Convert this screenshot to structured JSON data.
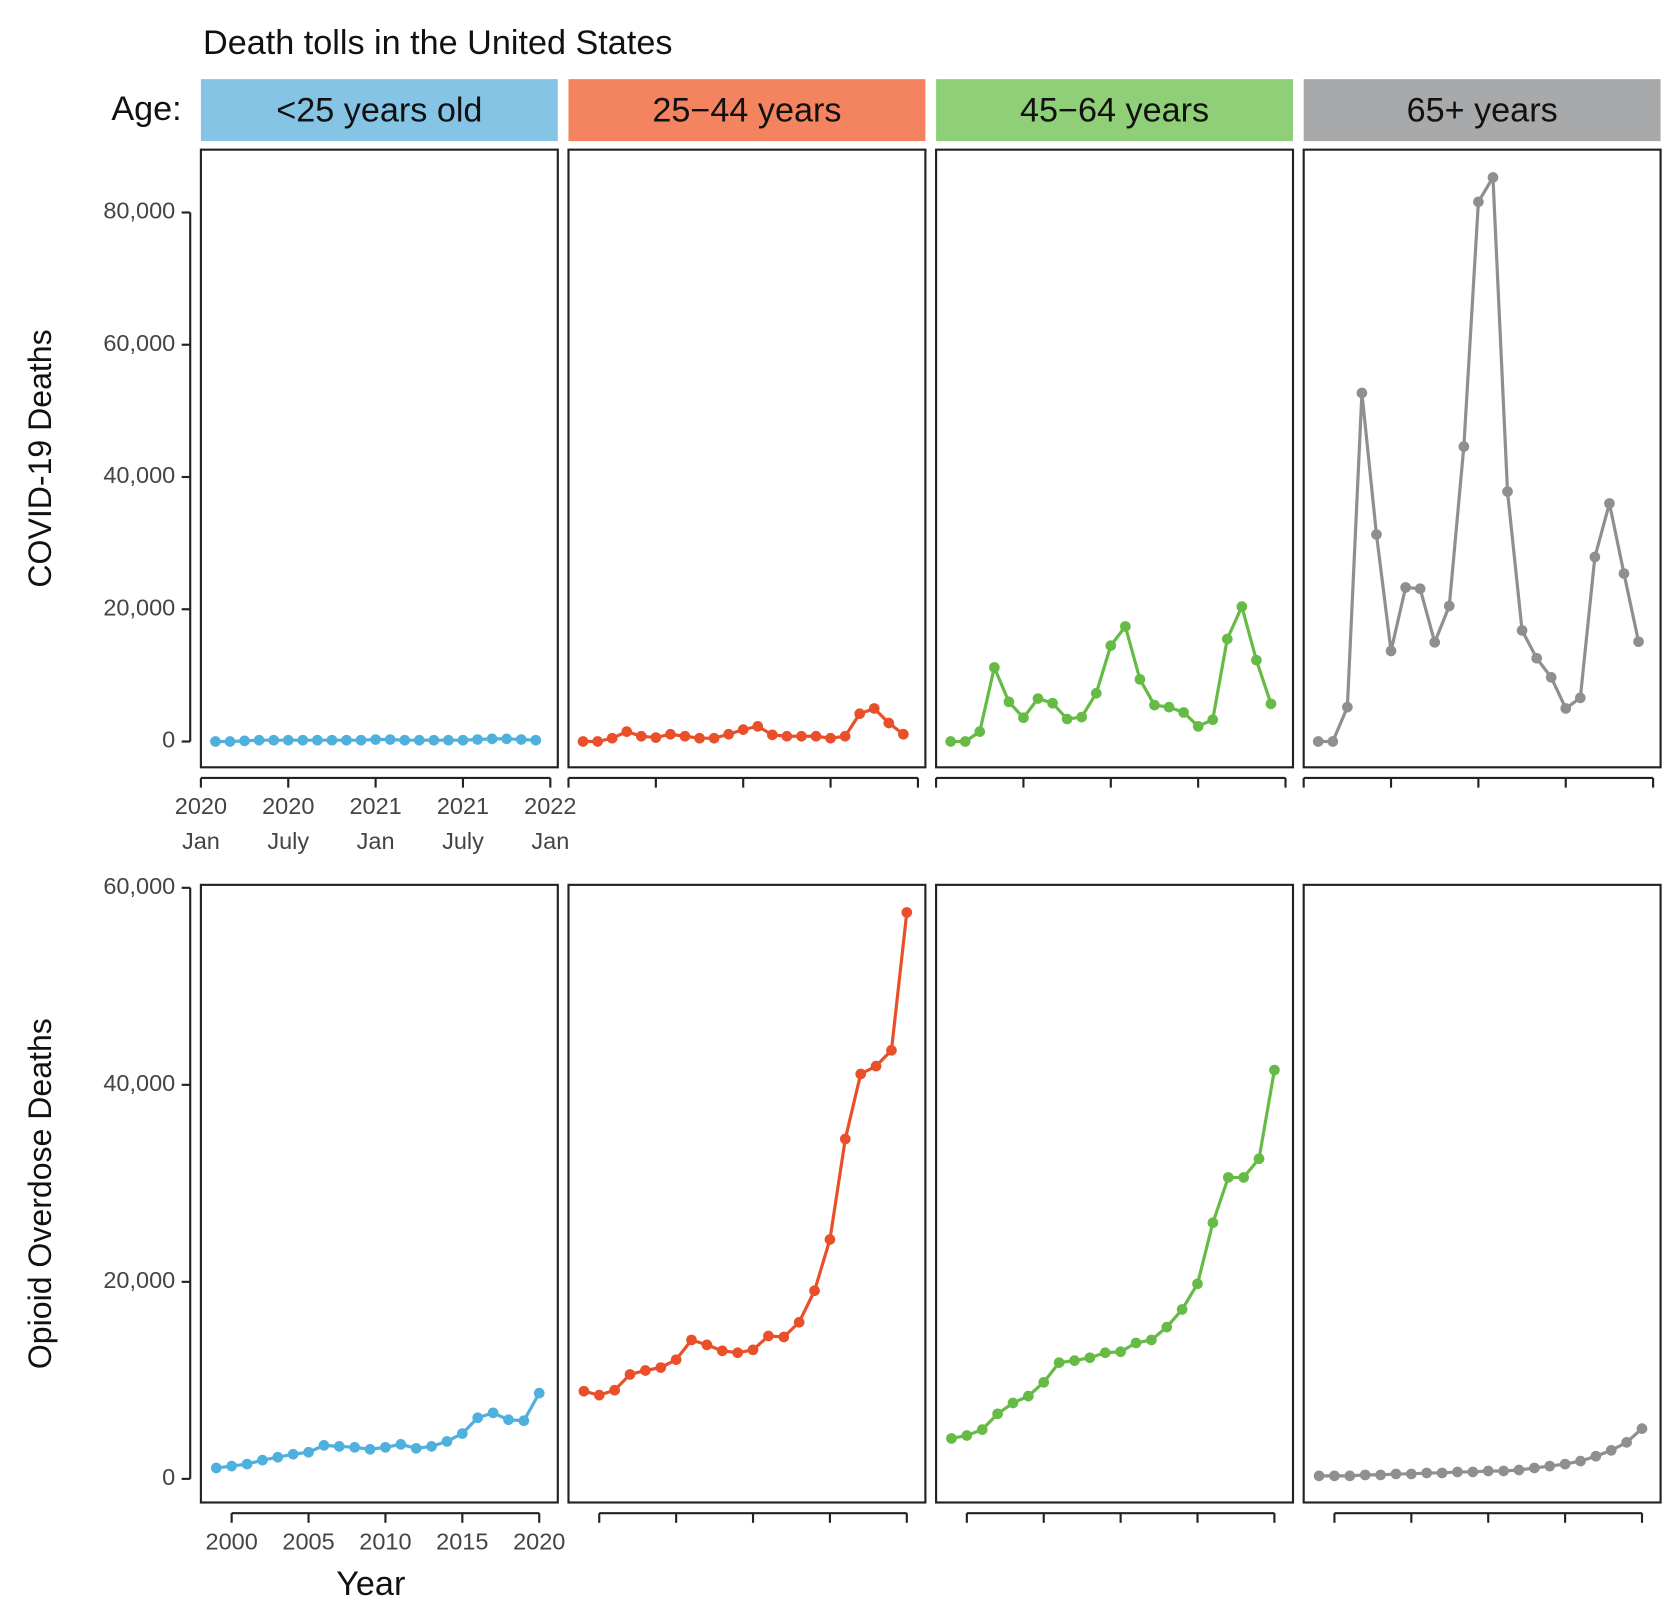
{
  "chart_data": {
    "type": "line",
    "title": "Death tolls in the United States",
    "facet_label": "Age:",
    "panels": [
      {
        "name": "<25 years old",
        "strip_color": "#85c4e4",
        "color": "#4fb0de"
      },
      {
        "name": "25−44 years",
        "strip_color": "#f4845f",
        "color": "#e9502a"
      },
      {
        "name": "45−64 years",
        "strip_color": "#8fcf78",
        "color": "#66bb46"
      },
      {
        "name": "65+ years",
        "strip_color": "#a8a9aa",
        "color": "#8e9090"
      }
    ],
    "rows": [
      {
        "ylabel": "COVID-19 Deaths",
        "x": [
          "2020-02",
          "2020-03",
          "2020-04",
          "2020-05",
          "2020-06",
          "2020-07",
          "2020-08",
          "2020-09",
          "2020-10",
          "2020-11",
          "2020-12",
          "2021-01",
          "2021-02",
          "2021-03",
          "2021-04",
          "2021-05",
          "2021-06",
          "2021-07",
          "2021-08",
          "2021-09",
          "2021-10",
          "2021-11",
          "2021-12"
        ],
        "xlim": [
          "2020-01",
          "2022-01"
        ],
        "xticks": [
          {
            "value": "2020-01",
            "label": "2020\nJan"
          },
          {
            "value": "2020-07",
            "label": "2020\nJuly"
          },
          {
            "value": "2021-01",
            "label": "2021\nJan"
          },
          {
            "value": "2021-07",
            "label": "2021\nJuly"
          },
          {
            "value": "2022-01",
            "label": "2022\nJan"
          }
        ],
        "ylim": [
          -3900,
          89500
        ],
        "yticks": [
          {
            "value": 0,
            "label": "0"
          },
          {
            "value": 20000,
            "label": "20,000"
          },
          {
            "value": 40000,
            "label": "40,000"
          },
          {
            "value": 60000,
            "label": "60,000"
          },
          {
            "value": 80000,
            "label": "80,000"
          }
        ],
        "series": [
          {
            "values": [
              0,
              0,
              100,
              200,
              200,
              200,
              200,
              200,
              200,
              200,
              200,
              300,
              300,
              200,
              200,
              200,
              200,
              200,
              300,
              400,
              400,
              300,
              200
            ]
          },
          {
            "values": [
              0,
              0,
              500,
              1500,
              800,
              600,
              1100,
              800,
              500,
              500,
              1100,
              1800,
              2300,
              1000,
              800,
              800,
              800,
              500,
              800,
              4200,
              5000,
              2800,
              1100
            ]
          },
          {
            "values": [
              0,
              0,
              1500,
              11200,
              6000,
              3600,
              6500,
              5800,
              3400,
              3700,
              7300,
              14500,
              17400,
              9400,
              5500,
              5200,
              4400,
              2300,
              3300,
              15500,
              20400,
              12300,
              5700
            ]
          },
          {
            "values": [
              0,
              0,
              5200,
              52700,
              31300,
              13700,
              23300,
              23100,
              15000,
              20500,
              44600,
              81600,
              85300,
              37800,
              16800,
              12600,
              9700,
              5000,
              6600,
              27900,
              36000,
              25400,
              15100
            ]
          }
        ]
      },
      {
        "ylabel": "Opioid Overdose Deaths",
        "xlabel": "Year",
        "x": [
          1999,
          2000,
          2001,
          2002,
          2003,
          2004,
          2005,
          2006,
          2007,
          2008,
          2009,
          2010,
          2011,
          2012,
          2013,
          2014,
          2015,
          2016,
          2017,
          2018,
          2019,
          2020
        ],
        "xlim": [
          1998,
          2021
        ],
        "xticks": [
          2000,
          2005,
          2010,
          2015,
          2020
        ],
        "ylim": [
          -2400,
          60300
        ],
        "yticks": [
          {
            "value": 0,
            "label": "0"
          },
          {
            "value": 20000,
            "label": "20,000"
          },
          {
            "value": 40000,
            "label": "40,000"
          },
          {
            "value": 60000,
            "label": "60,000"
          }
        ],
        "series": [
          {
            "values": [
              1100,
              1300,
              1500,
              1900,
              2200,
              2500,
              2700,
              3400,
              3300,
              3200,
              3000,
              3200,
              3500,
              3100,
              3300,
              3800,
              4600,
              6200,
              6700,
              6000,
              5900,
              8700
            ]
          },
          {
            "values": [
              8900,
              8500,
              9000,
              10600,
              11000,
              11300,
              12100,
              14100,
              13600,
              13000,
              12800,
              13100,
              14500,
              14400,
              15900,
              19100,
              24300,
              34500,
              41100,
              41900,
              43500,
              57500
            ]
          },
          {
            "values": [
              4100,
              4400,
              5000,
              6600,
              7700,
              8400,
              9800,
              11800,
              12000,
              12300,
              12800,
              12900,
              13800,
              14100,
              15400,
              17200,
              19800,
              26000,
              30600,
              30600,
              32500,
              41500
            ]
          },
          {
            "values": [
              300,
              300,
              300,
              400,
              400,
              500,
              500,
              600,
              600,
              700,
              700,
              800,
              800,
              900,
              1100,
              1300,
              1500,
              1800,
              2300,
              2900,
              3700,
              5100
            ]
          }
        ]
      }
    ]
  }
}
